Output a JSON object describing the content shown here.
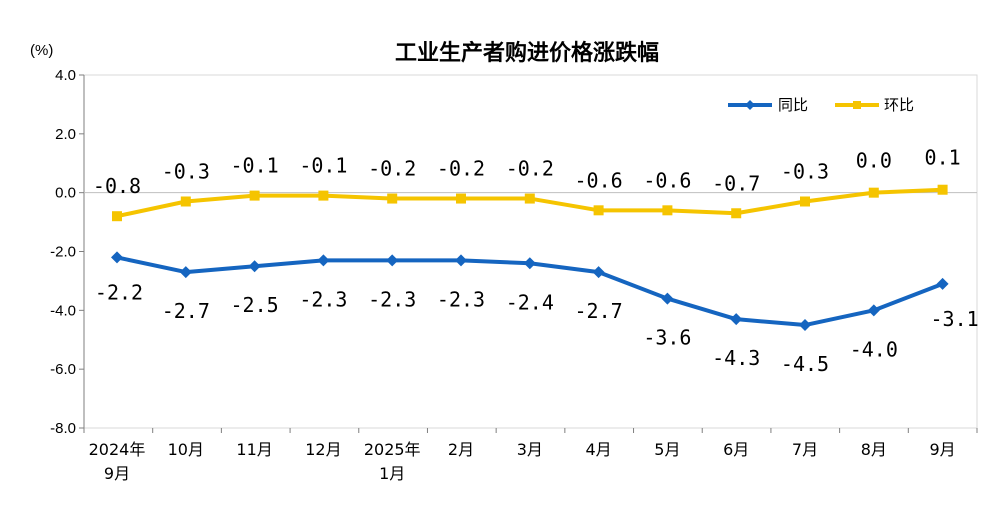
{
  "chart_data": {
    "type": "line",
    "title": "工业生产者购进价格涨跌幅",
    "ylabel": "(%)",
    "ylim": [
      -8.0,
      4.0
    ],
    "yticks": [
      4.0,
      2.0,
      0.0,
      -2.0,
      -4.0,
      -6.0,
      -8.0
    ],
    "ytick_labels": [
      "4.0",
      "2.0",
      "0.0",
      "-2.0",
      "-4.0",
      "-6.0",
      "-8.0"
    ],
    "categories": [
      [
        "2024年",
        "9月"
      ],
      [
        "10月"
      ],
      [
        "11月"
      ],
      [
        "12月"
      ],
      [
        "2025年",
        "1月"
      ],
      [
        "2月"
      ],
      [
        "3月"
      ],
      [
        "4月"
      ],
      [
        "5月"
      ],
      [
        "6月"
      ],
      [
        "7月"
      ],
      [
        "8月"
      ],
      [
        "9月"
      ]
    ],
    "grid": false,
    "legend_position": "top-right",
    "series": [
      {
        "name": "同比",
        "color": "#1565C0",
        "marker": "diamond",
        "values": [
          -2.2,
          -2.7,
          -2.5,
          -2.3,
          -2.3,
          -2.3,
          -2.4,
          -2.7,
          -3.6,
          -4.3,
          -4.5,
          -4.0,
          -3.1
        ],
        "labels": [
          "-2.2",
          "-2.7",
          "-2.5",
          "-2.3",
          "-2.3",
          "-2.3",
          "-2.4",
          "-2.7",
          "-3.6",
          "-4.3",
          "-4.5",
          "-4.0",
          "-3.1"
        ]
      },
      {
        "name": "环比",
        "color": "#F5C400",
        "marker": "square",
        "values": [
          -0.8,
          -0.3,
          -0.1,
          -0.1,
          -0.2,
          -0.2,
          -0.2,
          -0.6,
          -0.6,
          -0.7,
          -0.3,
          0.0,
          0.1
        ],
        "labels": [
          "-0.8",
          "-0.3",
          "-0.1",
          "-0.1",
          "-0.2",
          "-0.2",
          "-0.2",
          "-0.6",
          "-0.6",
          "-0.7",
          "-0.3",
          "0.0",
          "0.1"
        ]
      }
    ]
  }
}
